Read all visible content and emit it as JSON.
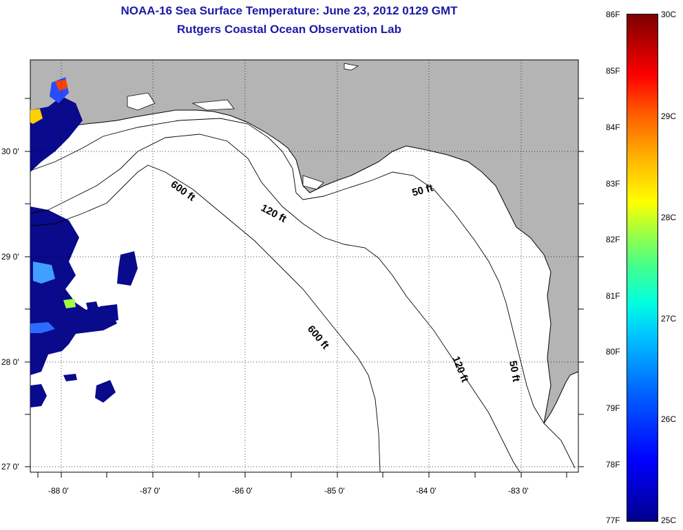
{
  "title": {
    "line1": "NOAA-16 Sea Surface Temperature:  June 23, 2012 0129 GMT",
    "line2": "Rutgers Coastal Ocean Observation Lab"
  },
  "map": {
    "lat_labels": [
      "30 0'",
      "29 0'",
      "28 0'",
      "27 0'"
    ],
    "lon_labels": [
      "-88 0'",
      "-87 0'",
      "-86 0'",
      "-85 0'",
      "-84 0'",
      "-83 0'"
    ],
    "lat_range": [
      26.95,
      30.9
    ],
    "lon_range": [
      -88.33,
      -82.4
    ],
    "contours": [
      {
        "label": "50 ft"
      },
      {
        "label": "120 ft"
      },
      {
        "label": "600 ft"
      }
    ],
    "contour_label_text": [
      "600 ft",
      "120 ft",
      "50 ft",
      "600 ft",
      "120 ft",
      "50 ft"
    ],
    "colors": {
      "land": "#b4b4b4",
      "water": "#ffffff",
      "sst_patches": "#0a0a8c"
    }
  },
  "colorbar": {
    "fahrenheit": [
      "86F",
      "85F",
      "84F",
      "83F",
      "82F",
      "81F",
      "80F",
      "79F",
      "78F",
      "77F"
    ],
    "celsius": [
      "30C",
      "29C",
      "28C",
      "27C",
      "26C",
      "25C"
    ],
    "range_f": [
      77,
      86
    ],
    "range_c": [
      25,
      30
    ]
  }
}
